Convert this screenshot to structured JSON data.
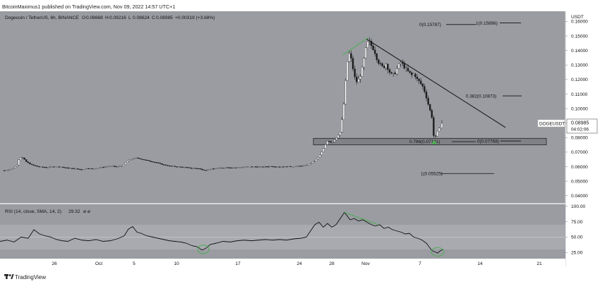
{
  "header": {
    "publisher_line": "BitcoinMaximus1 published on TradingView.com, Nov 09, 2022 14:57 UTC+1",
    "symbol_line": "Dogecoin / TetherUS, 6h, BINANCE",
    "ohlc": [
      {
        "label": "O",
        "value": "0.08668"
      },
      {
        "label": "H",
        "value": "0.09216"
      },
      {
        "label": "L",
        "value": "0.08624"
      },
      {
        "label": "C",
        "value": "0.08985"
      }
    ],
    "change": "+0.00319 (+3.68%)"
  },
  "price_axis": {
    "currency": "USDT",
    "ticks": [
      "0.16000",
      "0.15000",
      "0.14000",
      "0.13000",
      "0.12000",
      "0.11000",
      "0.10000",
      "0.09000",
      "0.08000",
      "0.07000",
      "0.06000",
      "0.05000",
      "0.04000"
    ]
  },
  "current_price": {
    "symbol": "DOGEUSDT",
    "price": "0.08985",
    "countdown": "04:02:06"
  },
  "fib_labels": [
    {
      "text": "0(0.15787)"
    },
    {
      "text": "1(0.15896)"
    },
    {
      "text": "0.382(0.10873)"
    },
    {
      "text": "0.786(0.07721)"
    },
    {
      "text": "0(0.07768)"
    },
    {
      "text": "1(0.05525)"
    }
  ],
  "rsi": {
    "title": "RSI (14, close, SMA, 14, 2)",
    "value": "29.32",
    "extra": "ø ø",
    "ticks": [
      "100.00",
      "75.00",
      "50.00",
      "25.00"
    ]
  },
  "time_axis": [
    "26",
    "Oct",
    "5",
    "10",
    "17",
    "24",
    "28",
    "Nov",
    "7",
    "14",
    "21"
  ],
  "footer": {
    "brand": "TradingView"
  },
  "colors": {
    "background": "#9a9ca2",
    "candle": "#ffffff",
    "wick": "#1a1a1a",
    "support_zone": "#7f8186",
    "support_border": "#222222",
    "rsi_band": "#a8aab0",
    "trendline": "#111111",
    "highlight": "#4caf50"
  },
  "chart_data": [
    {
      "type": "candlestick",
      "title": "Dogecoin / TetherUS, 6h, BINANCE",
      "x_ticks": [
        "26",
        "Oct",
        "5",
        "10",
        "17",
        "24",
        "28",
        "Nov",
        "7",
        "14",
        "21"
      ],
      "y_ticks": [
        0.16,
        0.15,
        0.14,
        0.13,
        0.12,
        0.11,
        0.1,
        0.09,
        0.08,
        0.07,
        0.06,
        0.05,
        0.04
      ],
      "ylim": [
        0.035,
        0.167
      ],
      "grid": false,
      "last": {
        "open": 0.08668,
        "high": 0.09216,
        "low": 0.08624,
        "close": 0.08985
      },
      "close_path": [
        [
          0,
          0.057
        ],
        [
          8,
          0.0575
        ],
        [
          15,
          0.0582
        ],
        [
          20,
          0.0595
        ],
        [
          24,
          0.061
        ],
        [
          28,
          0.0665
        ],
        [
          32,
          0.066
        ],
        [
          38,
          0.063
        ],
        [
          46,
          0.061
        ],
        [
          56,
          0.0598
        ],
        [
          66,
          0.0595
        ],
        [
          76,
          0.06
        ],
        [
          86,
          0.0598
        ],
        [
          96,
          0.059
        ],
        [
          106,
          0.0586
        ],
        [
          115,
          0.058
        ],
        [
          124,
          0.059
        ],
        [
          130,
          0.0585
        ],
        [
          140,
          0.0592
        ],
        [
          150,
          0.06
        ],
        [
          158,
          0.0605
        ],
        [
          166,
          0.0598
        ],
        [
          174,
          0.0608
        ],
        [
          180,
          0.064
        ],
        [
          186,
          0.065
        ],
        [
          194,
          0.066
        ],
        [
          202,
          0.065
        ],
        [
          210,
          0.064
        ],
        [
          220,
          0.063
        ],
        [
          230,
          0.0615
        ],
        [
          240,
          0.0605
        ],
        [
          250,
          0.06
        ],
        [
          262,
          0.0595
        ],
        [
          272,
          0.059
        ],
        [
          280,
          0.0588
        ],
        [
          286,
          0.058
        ],
        [
          292,
          0.0575
        ],
        [
          300,
          0.0585
        ],
        [
          310,
          0.059
        ],
        [
          322,
          0.0595
        ],
        [
          334,
          0.0592
        ],
        [
          346,
          0.0598
        ],
        [
          358,
          0.06
        ],
        [
          370,
          0.0598
        ],
        [
          382,
          0.0602
        ],
        [
          394,
          0.06
        ],
        [
          406,
          0.06
        ],
        [
          418,
          0.0602
        ],
        [
          428,
          0.0605
        ],
        [
          434,
          0.061
        ],
        [
          440,
          0.0625
        ],
        [
          446,
          0.064
        ],
        [
          452,
          0.067
        ],
        [
          458,
          0.072
        ],
        [
          464,
          0.078
        ],
        [
          470,
          0.0765
        ],
        [
          476,
          0.0795
        ],
        [
          482,
          0.084
        ],
        [
          486,
          0.097
        ],
        [
          489,
          0.115
        ],
        [
          492,
          0.132
        ],
        [
          495,
          0.138
        ],
        [
          498,
          0.133
        ],
        [
          501,
          0.125
        ],
        [
          504,
          0.118
        ],
        [
          508,
          0.12
        ],
        [
          512,
          0.125
        ],
        [
          516,
          0.135
        ],
        [
          519,
          0.143
        ],
        [
          522,
          0.147
        ],
        [
          525,
          0.144
        ],
        [
          528,
          0.142
        ],
        [
          531,
          0.139
        ],
        [
          535,
          0.133
        ],
        [
          539,
          0.13
        ],
        [
          543,
          0.128
        ],
        [
          547,
          0.131
        ],
        [
          551,
          0.126
        ],
        [
          555,
          0.123
        ],
        [
          559,
          0.124
        ],
        [
          563,
          0.128
        ],
        [
          567,
          0.132
        ],
        [
          571,
          0.13
        ],
        [
          575,
          0.127
        ],
        [
          579,
          0.125
        ],
        [
          583,
          0.123
        ],
        [
          587,
          0.124
        ],
        [
          591,
          0.12
        ],
        [
          595,
          0.118
        ],
        [
          599,
          0.115
        ],
        [
          603,
          0.11
        ],
        [
          606,
          0.104
        ],
        [
          609,
          0.099
        ],
        [
          612,
          0.094
        ],
        [
          614,
          0.082
        ],
        [
          616,
          0.079
        ],
        [
          619,
          0.083
        ],
        [
          622,
          0.0867
        ],
        [
          626,
          0.0899
        ]
      ],
      "fib_levels": [
        {
          "label": "0(0.15787)",
          "price": 0.15787
        },
        {
          "label": "1(0.15896)",
          "price": 0.15896
        },
        {
          "label": "0.382(0.10873)",
          "price": 0.10873
        },
        {
          "label": "0.786(0.07721)",
          "price": 0.07721
        },
        {
          "label": "0(0.07768)",
          "price": 0.07768
        },
        {
          "label": "1(0.05525)",
          "price": 0.05525
        }
      ],
      "support_zone": [
        0.075,
        0.0795
      ],
      "trendline": [
        [
          519,
          0.148
        ],
        [
          716,
          0.087
        ]
      ],
      "divergence_line": [
        [
          486,
          0.137
        ],
        [
          522,
          0.149
        ]
      ]
    },
    {
      "type": "line",
      "title": "RSI (14, close, SMA, 14, 2)",
      "y_ticks": [
        100,
        75,
        50,
        25
      ],
      "ylim": [
        15,
        103
      ],
      "bands": [
        30,
        70
      ],
      "last_value": 29.32,
      "series": [
        {
          "values": [
            [
              0,
              43
            ],
            [
              10,
              45
            ],
            [
              20,
              42
            ],
            [
              30,
              50
            ],
            [
              40,
              48
            ],
            [
              48,
              62
            ],
            [
              56,
              55
            ],
            [
              64,
              52
            ],
            [
              72,
              50
            ],
            [
              80,
              46
            ],
            [
              88,
              44
            ],
            [
              96,
              43
            ],
            [
              106,
              48
            ],
            [
              116,
              45
            ],
            [
              126,
              44
            ],
            [
              136,
              46
            ],
            [
              146,
              43
            ],
            [
              156,
              44
            ],
            [
              166,
              47
            ],
            [
              176,
              52
            ],
            [
              182,
              63
            ],
            [
              188,
              67
            ],
            [
              194,
              58
            ],
            [
              200,
              56
            ],
            [
              208,
              52
            ],
            [
              216,
              50
            ],
            [
              224,
              48
            ],
            [
              232,
              46
            ],
            [
              240,
              44
            ],
            [
              248,
              43
            ],
            [
              256,
              42
            ],
            [
              264,
              40
            ],
            [
              272,
              36
            ],
            [
              280,
              34
            ],
            [
              286,
              29
            ],
            [
              292,
              32
            ],
            [
              298,
              38
            ],
            [
              306,
              40
            ],
            [
              316,
              43
            ],
            [
              326,
              42
            ],
            [
              336,
              44
            ],
            [
              346,
              45
            ],
            [
              356,
              44
            ],
            [
              366,
              45
            ],
            [
              376,
              46
            ],
            [
              386,
              45
            ],
            [
              396,
              46
            ],
            [
              406,
              45
            ],
            [
              416,
              47
            ],
            [
              426,
              48
            ],
            [
              434,
              50
            ],
            [
              440,
              60
            ],
            [
              446,
              70
            ],
            [
              452,
              74
            ],
            [
              458,
              66
            ],
            [
              464,
              72
            ],
            [
              470,
              66
            ],
            [
              476,
              70
            ],
            [
              482,
              80
            ],
            [
              488,
              90
            ],
            [
              492,
              84
            ],
            [
              496,
              78
            ],
            [
              502,
              80
            ],
            [
              508,
              76
            ],
            [
              514,
              78
            ],
            [
              520,
              74
            ],
            [
              526,
              70
            ],
            [
              532,
              68
            ],
            [
              538,
              70
            ],
            [
              544,
              64
            ],
            [
              550,
              66
            ],
            [
              556,
              62
            ],
            [
              562,
              60
            ],
            [
              568,
              58
            ],
            [
              574,
              55
            ],
            [
              580,
              56
            ],
            [
              586,
              50
            ],
            [
              592,
              48
            ],
            [
              598,
              45
            ],
            [
              604,
              40
            ],
            [
              608,
              34
            ],
            [
              612,
              28
            ],
            [
              616,
              26
            ],
            [
              620,
              24
            ],
            [
              624,
              28
            ],
            [
              628,
              30
            ]
          ]
        }
      ],
      "divergence_line": [
        [
          488,
          90
        ],
        [
          536,
          70
        ]
      ]
    }
  ]
}
